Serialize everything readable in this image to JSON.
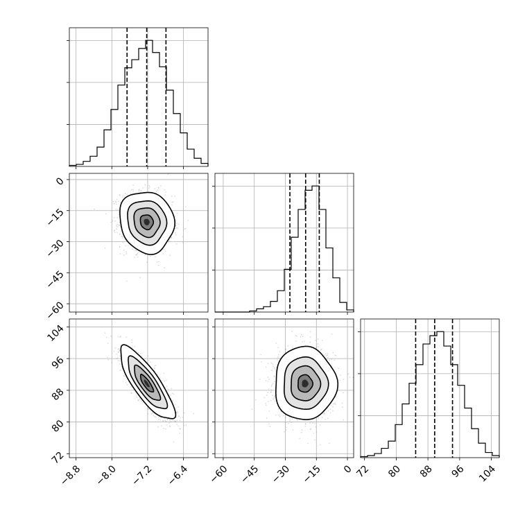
{
  "chart_data": {
    "type": "corner",
    "parameters": [
      "",
      "",
      ""
    ],
    "grid": true,
    "colors": {
      "scatter": "#9a9a9a",
      "line": "#000000",
      "grid": "#b0b0b0"
    },
    "ticks": {
      "p0": [
        -8.8,
        -8.0,
        -7.2,
        -6.4
      ],
      "p1": [
        -60,
        -45,
        -30,
        -15,
        0
      ],
      "p2": [
        72,
        80,
        88,
        96,
        104
      ]
    },
    "tick_labels": {
      "p0": [
        "−8.8",
        "−8.0",
        "−7.2",
        "−6.4"
      ],
      "p1": [
        "−60",
        "−45",
        "−30",
        "−15",
        "0"
      ],
      "p2": [
        "72",
        "80",
        "88",
        "96",
        "104"
      ]
    },
    "ranges": {
      "p0": [
        -8.95,
        -5.85
      ],
      "p1": [
        -64,
        3
      ],
      "p2": [
        71,
        106
      ]
    },
    "quantiles": {
      "p0": [
        -7.66,
        -7.22,
        -6.79
      ],
      "p1": [
        -27.8,
        -20.2,
        -13.6
      ],
      "p2": [
        84.9,
        89.7,
        94.2
      ]
    },
    "histograms": {
      "p0": {
        "edges": [
          -8.95,
          -8.795,
          -8.64,
          -8.485,
          -8.33,
          -8.175,
          -8.02,
          -7.865,
          -7.71,
          -7.555,
          -7.4,
          -7.245,
          -7.09,
          -6.935,
          -6.78,
          -6.625,
          -6.47,
          -6.315,
          -6.16,
          -6.005,
          -5.85
        ],
        "counts": [
          1,
          2,
          5,
          10,
          19,
          36,
          56,
          80,
          97,
          105,
          116,
          124,
          112,
          98,
          75,
          52,
          33,
          17,
          8,
          3
        ]
      },
      "p1": {
        "edges": [
          -64,
          -60.65,
          -57.3,
          -53.95,
          -50.6,
          -47.25,
          -43.9,
          -40.55,
          -37.2,
          -33.85,
          -30.5,
          -27.15,
          -23.8,
          -20.45,
          -17.1,
          -13.75,
          -10.4,
          -7.05,
          -3.7,
          -0.35,
          3
        ],
        "counts": [
          0,
          0,
          0,
          0,
          0,
          1,
          3,
          5,
          10,
          20,
          40,
          70,
          96,
          114,
          118,
          96,
          60,
          32,
          9,
          2
        ]
      },
      "p2": {
        "edges": [
          71,
          72.75,
          74.5,
          76.25,
          78,
          79.75,
          81.5,
          83.25,
          85,
          86.75,
          88.5,
          90.25,
          92,
          93.75,
          95.5,
          97.25,
          99,
          100.75,
          102.5,
          104.25,
          106
        ],
        "counts": [
          1,
          2,
          4,
          9,
          16,
          32,
          52,
          72,
          90,
          110,
          118,
          122,
          108,
          90,
          70,
          48,
          28,
          14,
          5,
          2
        ]
      }
    },
    "pairs": [
      {
        "x": "p0",
        "y": "p1",
        "mean": [
          -7.22,
          -20.5
        ],
        "std": [
          0.29,
          7.1
        ],
        "rho": -0.1
      },
      {
        "x": "p0",
        "y": "p2",
        "mean": [
          -7.22,
          89.7
        ],
        "std": [
          0.29,
          4.4
        ],
        "rho": -0.82
      },
      {
        "x": "p1",
        "y": "p2",
        "mean": [
          -20.5,
          89.7
        ],
        "std": [
          7.1,
          4.4
        ],
        "rho": 0.0
      }
    ]
  }
}
